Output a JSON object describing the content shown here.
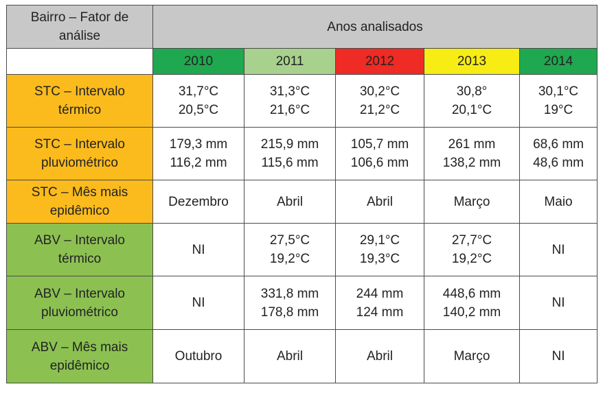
{
  "header": {
    "corner_label": "Bairro – Fator de análise",
    "span_label": "Anos analisados"
  },
  "years": [
    {
      "label": "2010",
      "color": "#1fa84f"
    },
    {
      "label": "2011",
      "color": "#a9d18e"
    },
    {
      "label": "2012",
      "color": "#ee2b24"
    },
    {
      "label": "2013",
      "color": "#f7ec13"
    },
    {
      "label": "2014",
      "color": "#1fa84f"
    }
  ],
  "row_colors": {
    "STC": "#fbbb1c",
    "ABV": "#8cc152"
  },
  "rows": [
    {
      "label": "STC – Intervalo térmico",
      "group": "STC",
      "cells": [
        [
          "31,7°C",
          "20,5°C"
        ],
        [
          "31,3°C",
          "21,6°C"
        ],
        [
          "30,2°C",
          "21,2°C"
        ],
        [
          "30,8°",
          "20,1°C"
        ],
        [
          "30,1°C",
          "19°C"
        ]
      ]
    },
    {
      "label": "STC – Intervalo pluviométrico",
      "group": "STC",
      "cells": [
        [
          "179,3 mm",
          "116,2 mm"
        ],
        [
          "215,9 mm",
          "115,6 mm"
        ],
        [
          "105,7 mm",
          "106,6 mm"
        ],
        [
          "261 mm",
          "138,2 mm"
        ],
        [
          "68,6 mm",
          "48,6 mm"
        ]
      ]
    },
    {
      "label": "STC – Mês mais epidêmico",
      "group": "STC",
      "cells": [
        [
          "Dezembro"
        ],
        [
          "Abril"
        ],
        [
          "Abril"
        ],
        [
          "Março"
        ],
        [
          "Maio"
        ]
      ]
    },
    {
      "label": "ABV – Intervalo térmico",
      "group": "ABV",
      "cells": [
        [
          "NI"
        ],
        [
          "27,5°C",
          "19,2°C"
        ],
        [
          "29,1°C",
          "19,3°C"
        ],
        [
          "27,7°C",
          "19,2°C"
        ],
        [
          "NI"
        ]
      ]
    },
    {
      "label": "ABV – Intervalo pluviométrico",
      "group": "ABV",
      "cells": [
        [
          "NI"
        ],
        [
          "331,8 mm",
          "178,8 mm"
        ],
        [
          "244 mm",
          "124 mm"
        ],
        [
          "448,6 mm",
          "140,2 mm"
        ],
        [
          "NI"
        ]
      ]
    },
    {
      "label": "ABV – Mês mais epidêmico",
      "group": "ABV",
      "cells": [
        [
          "Outubro"
        ],
        [
          "Abril"
        ],
        [
          "Abril"
        ],
        [
          "Março"
        ],
        [
          "NI"
        ]
      ]
    }
  ]
}
